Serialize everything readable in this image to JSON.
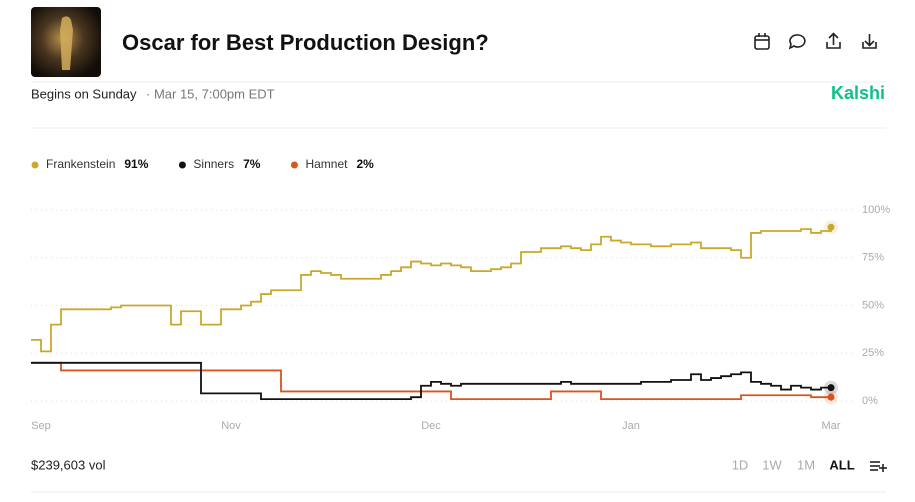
{
  "header": {
    "title": "Oscar for Best Production Design?",
    "begins": "Begins on Sunday",
    "date": "· Mar 15, 7:00pm EDT",
    "brand": "Kalshi"
  },
  "footer": {
    "volume": "$239,603 vol",
    "ranges": [
      "1D",
      "1W",
      "1M",
      "ALL"
    ]
  },
  "chart_data": {
    "type": "line",
    "categories": [
      null,
      "Sep",
      null,
      null,
      null,
      null,
      null,
      null,
      null,
      null,
      null,
      null,
      null,
      null,
      null,
      null,
      null,
      null,
      null,
      null,
      "Nov",
      null,
      null,
      null,
      null,
      null,
      null,
      null,
      null,
      null,
      null,
      null,
      null,
      null,
      null,
      null,
      null,
      null,
      null,
      null,
      "Dec",
      null,
      null,
      null,
      null,
      null,
      null,
      null,
      null,
      null,
      null,
      null,
      null,
      null,
      null,
      null,
      null,
      null,
      null,
      null,
      "Jan",
      null,
      null,
      null,
      null,
      null,
      null,
      null,
      null,
      null,
      null,
      null,
      null,
      null,
      null,
      null,
      null,
      null,
      null,
      null,
      "Mar"
    ],
    "series": [
      {
        "name": "Frankenstein",
        "color": "#c9a92c",
        "current": {
          "value": 91,
          "label": "91%"
        },
        "values": [
          32,
          26,
          40,
          48,
          48,
          48,
          48,
          48,
          49,
          50,
          50,
          50,
          50,
          50,
          40,
          47,
          47,
          40,
          40,
          48,
          48,
          50,
          52,
          56,
          58,
          58,
          58,
          66,
          68,
          67,
          66,
          64,
          64,
          64,
          64,
          66,
          68,
          70,
          73,
          72,
          71,
          72,
          71,
          70,
          68,
          68,
          69,
          70,
          72,
          78,
          78,
          80,
          80,
          81,
          80,
          79,
          82,
          86,
          84,
          83,
          82,
          82,
          81,
          81,
          82,
          82,
          83,
          80,
          80,
          80,
          79,
          75,
          88,
          89,
          89,
          89,
          89,
          90,
          88,
          89,
          91
        ]
      },
      {
        "name": "Sinners",
        "color": "#111111",
        "current": {
          "value": 7,
          "label": "7%"
        },
        "values": [
          20,
          20,
          20,
          20,
          20,
          20,
          20,
          20,
          20,
          20,
          20,
          20,
          20,
          20,
          20,
          20,
          20,
          4,
          4,
          4,
          4,
          4,
          4,
          1,
          1,
          1,
          1,
          1,
          1,
          1,
          1,
          1,
          1,
          1,
          1,
          1,
          1,
          1,
          2,
          8,
          10,
          9,
          8,
          9,
          9,
          9,
          9,
          9,
          9,
          9,
          9,
          9,
          9,
          10,
          9,
          9,
          9,
          9,
          9,
          9,
          9,
          10,
          10,
          10,
          11,
          11,
          14,
          11,
          12,
          13,
          14,
          15,
          10,
          9,
          8,
          6,
          8,
          7,
          6,
          7,
          7
        ]
      },
      {
        "name": "Hamnet",
        "color": "#d9541e",
        "current": {
          "value": 2,
          "label": "2%"
        },
        "values": [
          20,
          20,
          20,
          16,
          16,
          16,
          16,
          16,
          16,
          16,
          16,
          16,
          16,
          16,
          16,
          16,
          16,
          16,
          16,
          16,
          16,
          16,
          16,
          16,
          16,
          5,
          5,
          5,
          5,
          5,
          5,
          5,
          5,
          5,
          5,
          5,
          5,
          5,
          5,
          5,
          5,
          5,
          1,
          1,
          1,
          1,
          1,
          1,
          1,
          1,
          1,
          1,
          5,
          5,
          5,
          5,
          5,
          1,
          1,
          1,
          1,
          1,
          1,
          1,
          1,
          1,
          1,
          1,
          1,
          1,
          1,
          3,
          3,
          3,
          3,
          3,
          3,
          3,
          2,
          2,
          2
        ]
      }
    ],
    "ylim": [
      0,
      100
    ],
    "yticks": [
      {
        "value": 0,
        "label": "0%"
      },
      {
        "value": 25,
        "label": "25%"
      },
      {
        "value": 50,
        "label": "50%"
      },
      {
        "value": 75,
        "label": "75%"
      },
      {
        "value": 100,
        "label": "100%"
      }
    ],
    "grid": true
  }
}
